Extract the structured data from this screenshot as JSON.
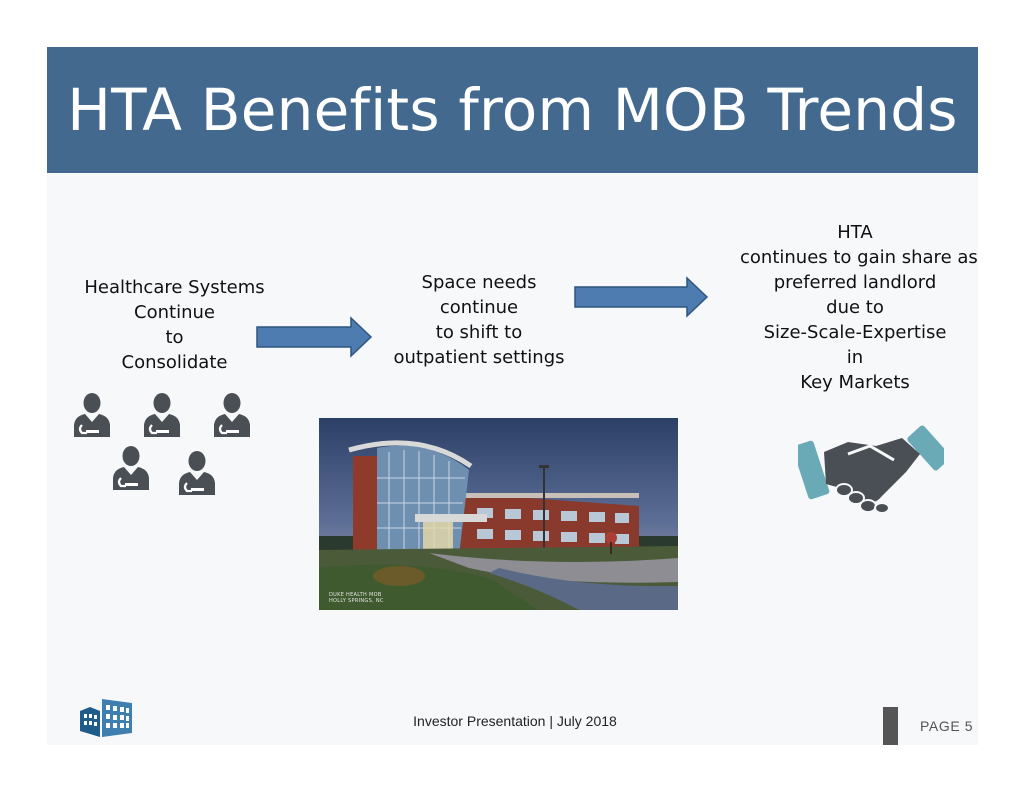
{
  "title": "HTA Benefits from MOB Trends",
  "left_block": {
    "lines": [
      "Healthcare Systems",
      "Continue",
      "to",
      "Consolidate"
    ]
  },
  "middle_block": {
    "lines": [
      "Space needs",
      "continue",
      "to shift to",
      "outpatient settings"
    ]
  },
  "right_block": {
    "lines": [
      "HTA",
      "continues to gain share as",
      "preferred landlord",
      "due to",
      "Size-Scale-Expertise",
      "in",
      "Key Markets"
    ]
  },
  "photo": {
    "caption_line1": "DUKE HEALTH MOB",
    "caption_line2": "HOLLY SPRINGS, NC"
  },
  "footer": {
    "text": "Investor Presentation | July 2018",
    "page": "PAGE 5"
  },
  "icons": {
    "people": "person-icon",
    "handshake": "handshake-icon",
    "logo": "company-logo-icon"
  },
  "colors": {
    "title_bg": "#44698f",
    "arrow": "#4f7cb0",
    "teal": "#6aaab6",
    "icon_dark": "#4a4f56"
  }
}
